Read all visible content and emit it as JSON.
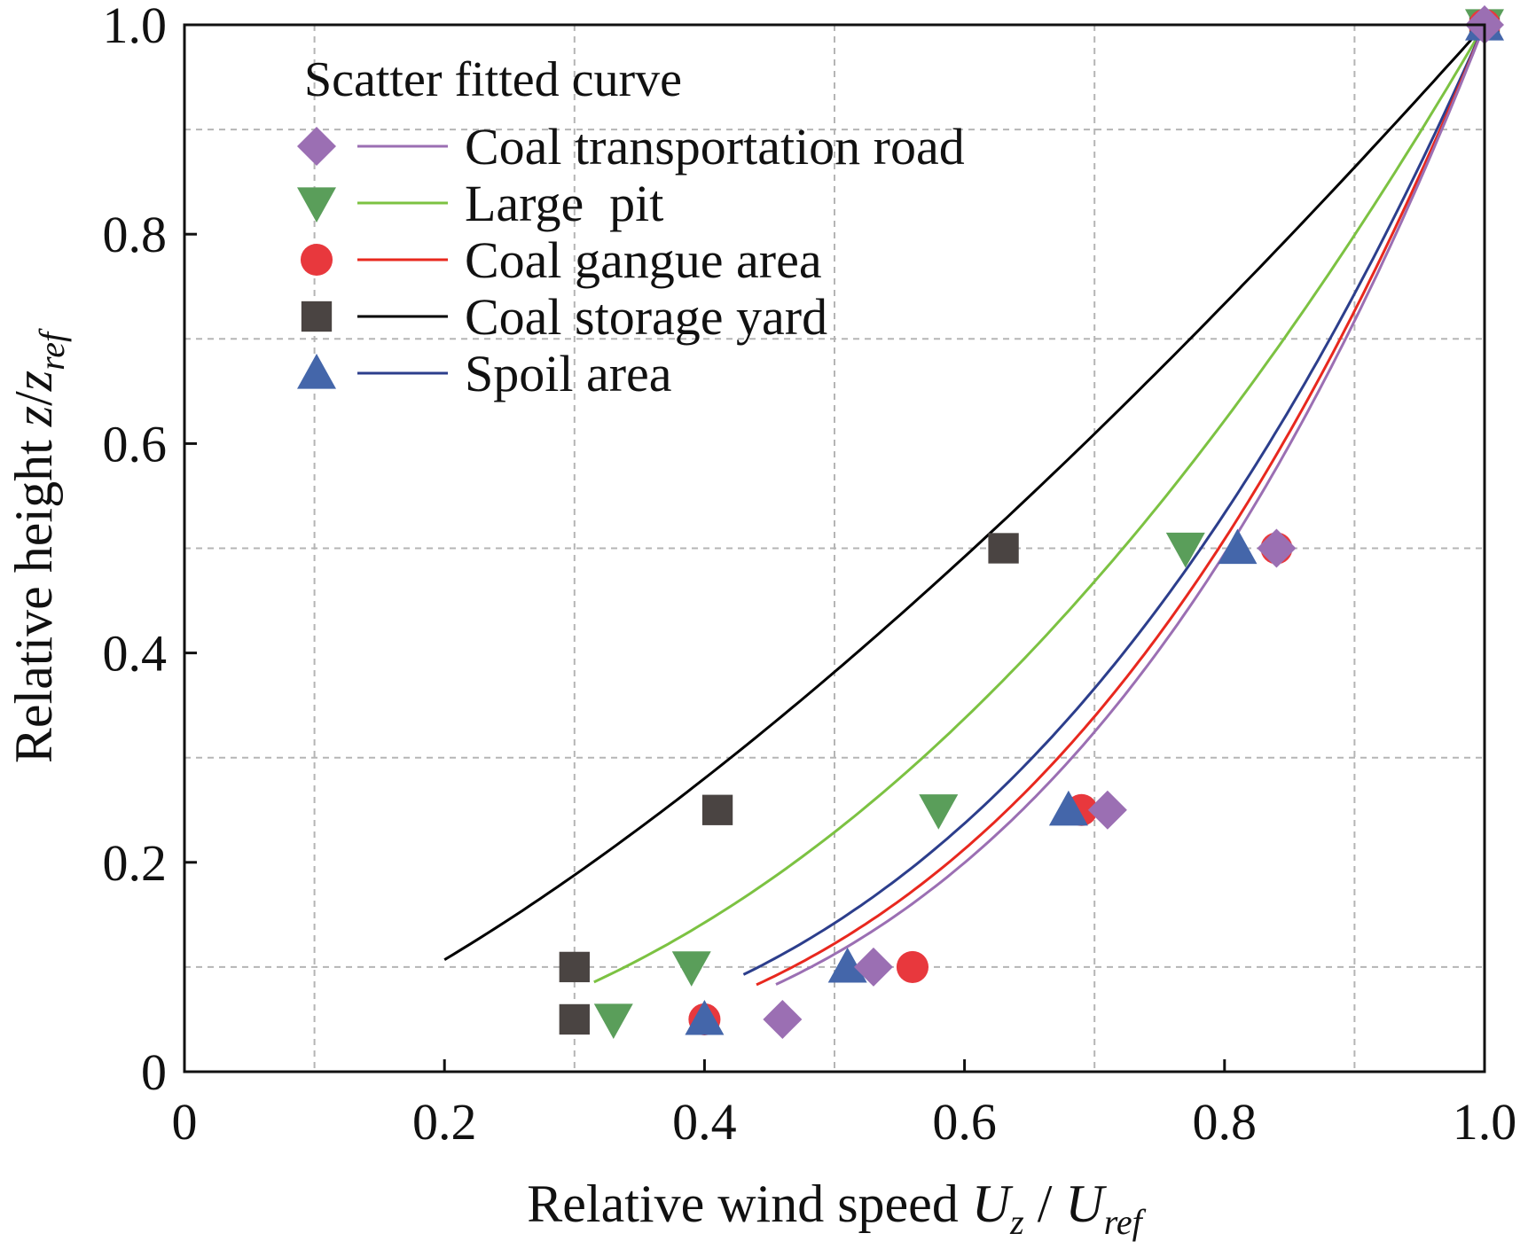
{
  "chart_data": {
    "type": "scatter",
    "title": "",
    "xlabel": {
      "text": "Relative wind speed ",
      "var": "U",
      "sub": "z",
      "sep": " / ",
      "var2": "U",
      "sub2": "ref"
    },
    "ylabel": {
      "text": "Relative height ",
      "var": "z",
      "sep": "/",
      "var2": "z",
      "sub2": "ref"
    },
    "xlim": [
      0,
      1.0
    ],
    "ylim": [
      0,
      1.0
    ],
    "xticks": [
      0,
      0.2,
      0.4,
      0.6,
      0.8,
      1.0
    ],
    "xtick_labels": [
      "0",
      "0.2",
      "0.4",
      "0.6",
      "0.8",
      "1.0"
    ],
    "yticks": [
      0,
      0.2,
      0.4,
      0.6,
      0.8,
      1.0
    ],
    "ytick_labels": [
      "0",
      "0.2",
      "0.4",
      "0.6",
      "0.8",
      "1.0"
    ],
    "grid_x": [
      0.1,
      0.3,
      0.5,
      0.7,
      0.9
    ],
    "grid_y": [
      0.1,
      0.3,
      0.5,
      0.7,
      0.9
    ],
    "grid": true,
    "legend": {
      "title": "Scatter fitted curve",
      "placement": "top-left"
    },
    "series": [
      {
        "name": "Coal transportation road",
        "marker": "diamond",
        "color": "#9b6fb3",
        "points": [
          [
            0.46,
            0.05
          ],
          [
            0.53,
            0.1
          ],
          [
            0.71,
            0.25
          ],
          [
            0.84,
            0.5
          ],
          [
            1.0,
            1.0
          ]
        ],
        "fit": {
          "alpha": 0.317,
          "x_start": 0.455
        }
      },
      {
        "name": "Large  pit",
        "marker": "triangle-down",
        "color": "#5a9e5a",
        "line_color": "#7cc242",
        "points": [
          [
            0.33,
            0.05
          ],
          [
            0.39,
            0.1
          ],
          [
            0.58,
            0.25
          ],
          [
            0.77,
            0.5
          ],
          [
            1.0,
            1.0
          ]
        ],
        "fit": {
          "alpha": 0.47,
          "x_start": 0.315
        }
      },
      {
        "name": "Coal gangue area",
        "marker": "circle",
        "color": "#e8383d",
        "line_color": "#e8281e",
        "points": [
          [
            0.4,
            0.05
          ],
          [
            0.56,
            0.1
          ],
          [
            0.69,
            0.25
          ],
          [
            0.84,
            0.5
          ],
          [
            1.0,
            1.0
          ]
        ],
        "fit": {
          "alpha": 0.33,
          "x_start": 0.44
        }
      },
      {
        "name": "Coal storage yard",
        "marker": "square",
        "color": "#4a4442",
        "line_color": "#000000",
        "points": [
          [
            0.3,
            0.05
          ],
          [
            0.3,
            0.1
          ],
          [
            0.41,
            0.25
          ],
          [
            0.63,
            0.5
          ],
          [
            1.0,
            1.0
          ]
        ],
        "fit": {
          "alpha": 0.72,
          "x_start": 0.2
        }
      },
      {
        "name": "Spoil area",
        "marker": "triangle-up",
        "color": "#4466aa",
        "line_color": "#2c3e8c",
        "points": [
          [
            0.4,
            0.05
          ],
          [
            0.51,
            0.1
          ],
          [
            0.68,
            0.25
          ],
          [
            0.81,
            0.5
          ],
          [
            1.0,
            1.0
          ]
        ],
        "fit": {
          "alpha": 0.355,
          "x_start": 0.43
        }
      }
    ]
  }
}
